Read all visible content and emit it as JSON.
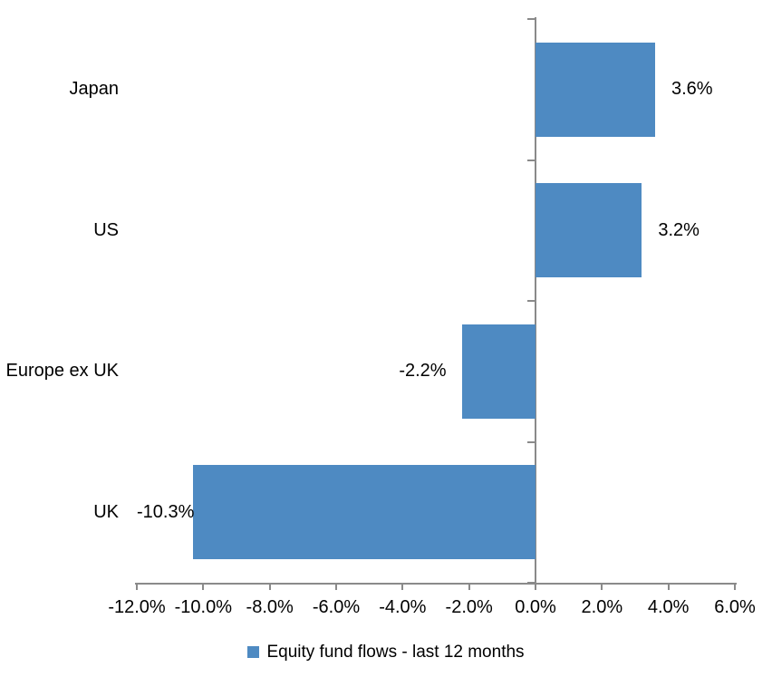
{
  "chart_data": {
    "type": "bar",
    "orientation": "horizontal",
    "title": "",
    "categories": [
      "Japan",
      "US",
      "Europe ex UK",
      "UK"
    ],
    "series": [
      {
        "name": "Equity fund flows - last 12 months",
        "values": [
          3.6,
          3.2,
          -2.2,
          -10.3
        ],
        "data_labels": [
          "3.6%",
          "3.2%",
          "-2.2%",
          "-10.3%"
        ]
      }
    ],
    "xlim": [
      -12,
      6
    ],
    "x_ticks": [
      -12,
      -10,
      -8,
      -6,
      -4,
      -2,
      0,
      2,
      4,
      6
    ],
    "x_tick_labels": [
      "-12.0%",
      "-10.0%",
      "-8.0%",
      "-6.0%",
      "-4.0%",
      "-2.0%",
      "0.0%",
      "2.0%",
      "4.0%",
      "6.0%"
    ],
    "ylabel": "",
    "xlabel": "",
    "grid": false,
    "legend_position": "bottom",
    "bar_color": "#4E8AC2",
    "axis_color": "#8A8A8A",
    "text_color": "#000000"
  }
}
